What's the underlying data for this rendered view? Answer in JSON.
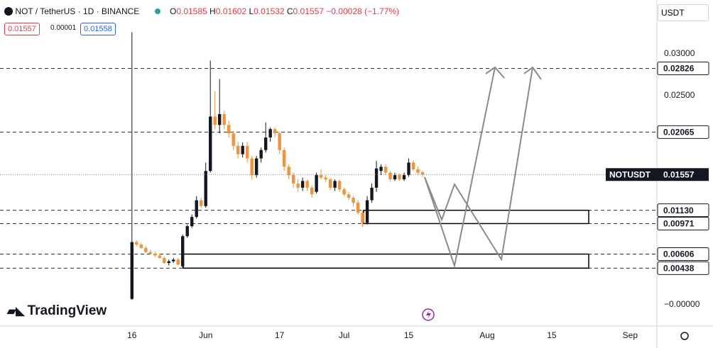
{
  "header": {
    "symbol": "NOT / TetherUS · 1D · BINANCE",
    "ohlc": [
      {
        "label": "O",
        "value": "0.01585"
      },
      {
        "label": "H",
        "value": "0.01602"
      },
      {
        "label": "L",
        "value": "0.01532"
      },
      {
        "label": "C",
        "value": "0.01557"
      }
    ],
    "change": "−0.00028 (−1.77%)",
    "bid": "0.01557",
    "spread": "0.00001",
    "ask": "0.01558",
    "currency": "USDT",
    "logo": "TradingView"
  },
  "chart_data": {
    "type": "candlestick",
    "up_color": "#131722",
    "down_color": "#f39237",
    "ohlc": [
      [
        0.0007,
        0.0326,
        0.0006,
        0.0075
      ],
      [
        0.0075,
        0.0077,
        0.007,
        0.0072
      ],
      [
        0.0072,
        0.0074,
        0.0067,
        0.0068
      ],
      [
        0.0068,
        0.007,
        0.0062,
        0.0063
      ],
      [
        0.0063,
        0.0066,
        0.006,
        0.0061
      ],
      [
        0.0061,
        0.0064,
        0.0057,
        0.0059
      ],
      [
        0.0059,
        0.0061,
        0.0055,
        0.0056
      ],
      [
        0.0056,
        0.0058,
        0.0049,
        0.005
      ],
      [
        0.005,
        0.0054,
        0.0047,
        0.0052
      ],
      [
        0.0052,
        0.0056,
        0.005,
        0.0054
      ],
      [
        0.0054,
        0.0056,
        0.0047,
        0.0048
      ],
      [
        0.0046,
        0.0084,
        0.0044,
        0.0082
      ],
      [
        0.0082,
        0.0096,
        0.008,
        0.0094
      ],
      [
        0.0094,
        0.0108,
        0.0092,
        0.0105
      ],
      [
        0.0105,
        0.013,
        0.0103,
        0.0125
      ],
      [
        0.0125,
        0.0128,
        0.0115,
        0.0118
      ],
      [
        0.0118,
        0.017,
        0.0116,
        0.016
      ],
      [
        0.016,
        0.0292,
        0.0158,
        0.0225
      ],
      [
        0.0225,
        0.0255,
        0.021,
        0.0215
      ],
      [
        0.0215,
        0.027,
        0.0205,
        0.0228
      ],
      [
        0.0228,
        0.0232,
        0.021,
        0.0215
      ],
      [
        0.0215,
        0.022,
        0.02,
        0.0205
      ],
      [
        0.0205,
        0.0208,
        0.0185,
        0.019
      ],
      [
        0.019,
        0.0195,
        0.0175,
        0.018
      ],
      [
        0.018,
        0.0194,
        0.0176,
        0.019
      ],
      [
        0.019,
        0.0195,
        0.017,
        0.0175
      ],
      [
        0.0175,
        0.0178,
        0.015,
        0.0155
      ],
      [
        0.0155,
        0.0178,
        0.0152,
        0.0175
      ],
      [
        0.0175,
        0.0188,
        0.017,
        0.0185
      ],
      [
        0.0185,
        0.0218,
        0.0182,
        0.02
      ],
      [
        0.02,
        0.0212,
        0.0195,
        0.021
      ],
      [
        0.021,
        0.0212,
        0.02,
        0.0205
      ],
      [
        0.0205,
        0.0207,
        0.018,
        0.0185
      ],
      [
        0.0185,
        0.0188,
        0.016,
        0.0165
      ],
      [
        0.0165,
        0.0168,
        0.015,
        0.0155
      ],
      [
        0.0155,
        0.0158,
        0.014,
        0.0145
      ],
      [
        0.0145,
        0.015,
        0.0135,
        0.014
      ],
      [
        0.014,
        0.0152,
        0.0136,
        0.0148
      ],
      [
        0.0148,
        0.015,
        0.0136,
        0.014
      ],
      [
        0.014,
        0.0143,
        0.0128,
        0.0132
      ],
      [
        0.0135,
        0.0158,
        0.0133,
        0.0155
      ],
      [
        0.0155,
        0.0162,
        0.015,
        0.0152
      ],
      [
        0.0152,
        0.0155,
        0.0147,
        0.015
      ],
      [
        0.015,
        0.0152,
        0.0137,
        0.014
      ],
      [
        0.014,
        0.015,
        0.0136,
        0.0148
      ],
      [
        0.0148,
        0.015,
        0.0135,
        0.0138
      ],
      [
        0.0138,
        0.014,
        0.013,
        0.0132
      ],
      [
        0.0132,
        0.0135,
        0.0125,
        0.0128
      ],
      [
        0.0128,
        0.013,
        0.0118,
        0.0122
      ],
      [
        0.0122,
        0.0125,
        0.0108,
        0.011
      ],
      [
        0.011,
        0.0113,
        0.0093,
        0.0098
      ],
      [
        0.0098,
        0.013,
        0.0096,
        0.0125
      ],
      [
        0.0125,
        0.0145,
        0.0122,
        0.014
      ],
      [
        0.014,
        0.0172,
        0.0135,
        0.0163
      ],
      [
        0.016,
        0.0168,
        0.0155,
        0.0165
      ],
      [
        0.0165,
        0.0168,
        0.0155,
        0.0158
      ],
      [
        0.0158,
        0.016,
        0.0147,
        0.015
      ],
      [
        0.015,
        0.0158,
        0.0148,
        0.0155
      ],
      [
        0.0155,
        0.0157,
        0.0148,
        0.015
      ],
      [
        0.015,
        0.0158,
        0.0148,
        0.0155
      ],
      [
        0.0155,
        0.0175,
        0.0153,
        0.017
      ],
      [
        0.017,
        0.0173,
        0.016,
        0.0162
      ],
      [
        0.0162,
        0.0165,
        0.0155,
        0.0158
      ],
      [
        0.01585,
        0.01602,
        0.01532,
        0.01557
      ]
    ],
    "xlim": [
      -28.6,
      113.8
    ],
    "xticks": [
      {
        "value": 0,
        "label": "16"
      },
      {
        "value": 16,
        "label": "Jun"
      },
      {
        "value": 32,
        "label": "17"
      },
      {
        "value": 46,
        "label": "Jul"
      },
      {
        "value": 60,
        "label": "15"
      },
      {
        "value": 77,
        "label": "Aug"
      },
      {
        "value": 91,
        "label": "15"
      },
      {
        "value": 108,
        "label": "Sep"
      }
    ],
    "ylim": [
      -0.00254,
      0.03644
    ],
    "yticks": [
      {
        "value": 0.03,
        "label": "0.03000"
      },
      {
        "value": 0.025,
        "label": "0.02500"
      },
      {
        "value": 0,
        "label": "−0.00000"
      }
    ],
    "levels": [
      0.02826,
      0.02065,
      {
        "value": 0.0113,
        "label": "0.01130"
      },
      0.00971,
      0.00606,
      0.00438
    ],
    "symbol_label": "NOTUSDT",
    "last_price": 0.01557
  }
}
